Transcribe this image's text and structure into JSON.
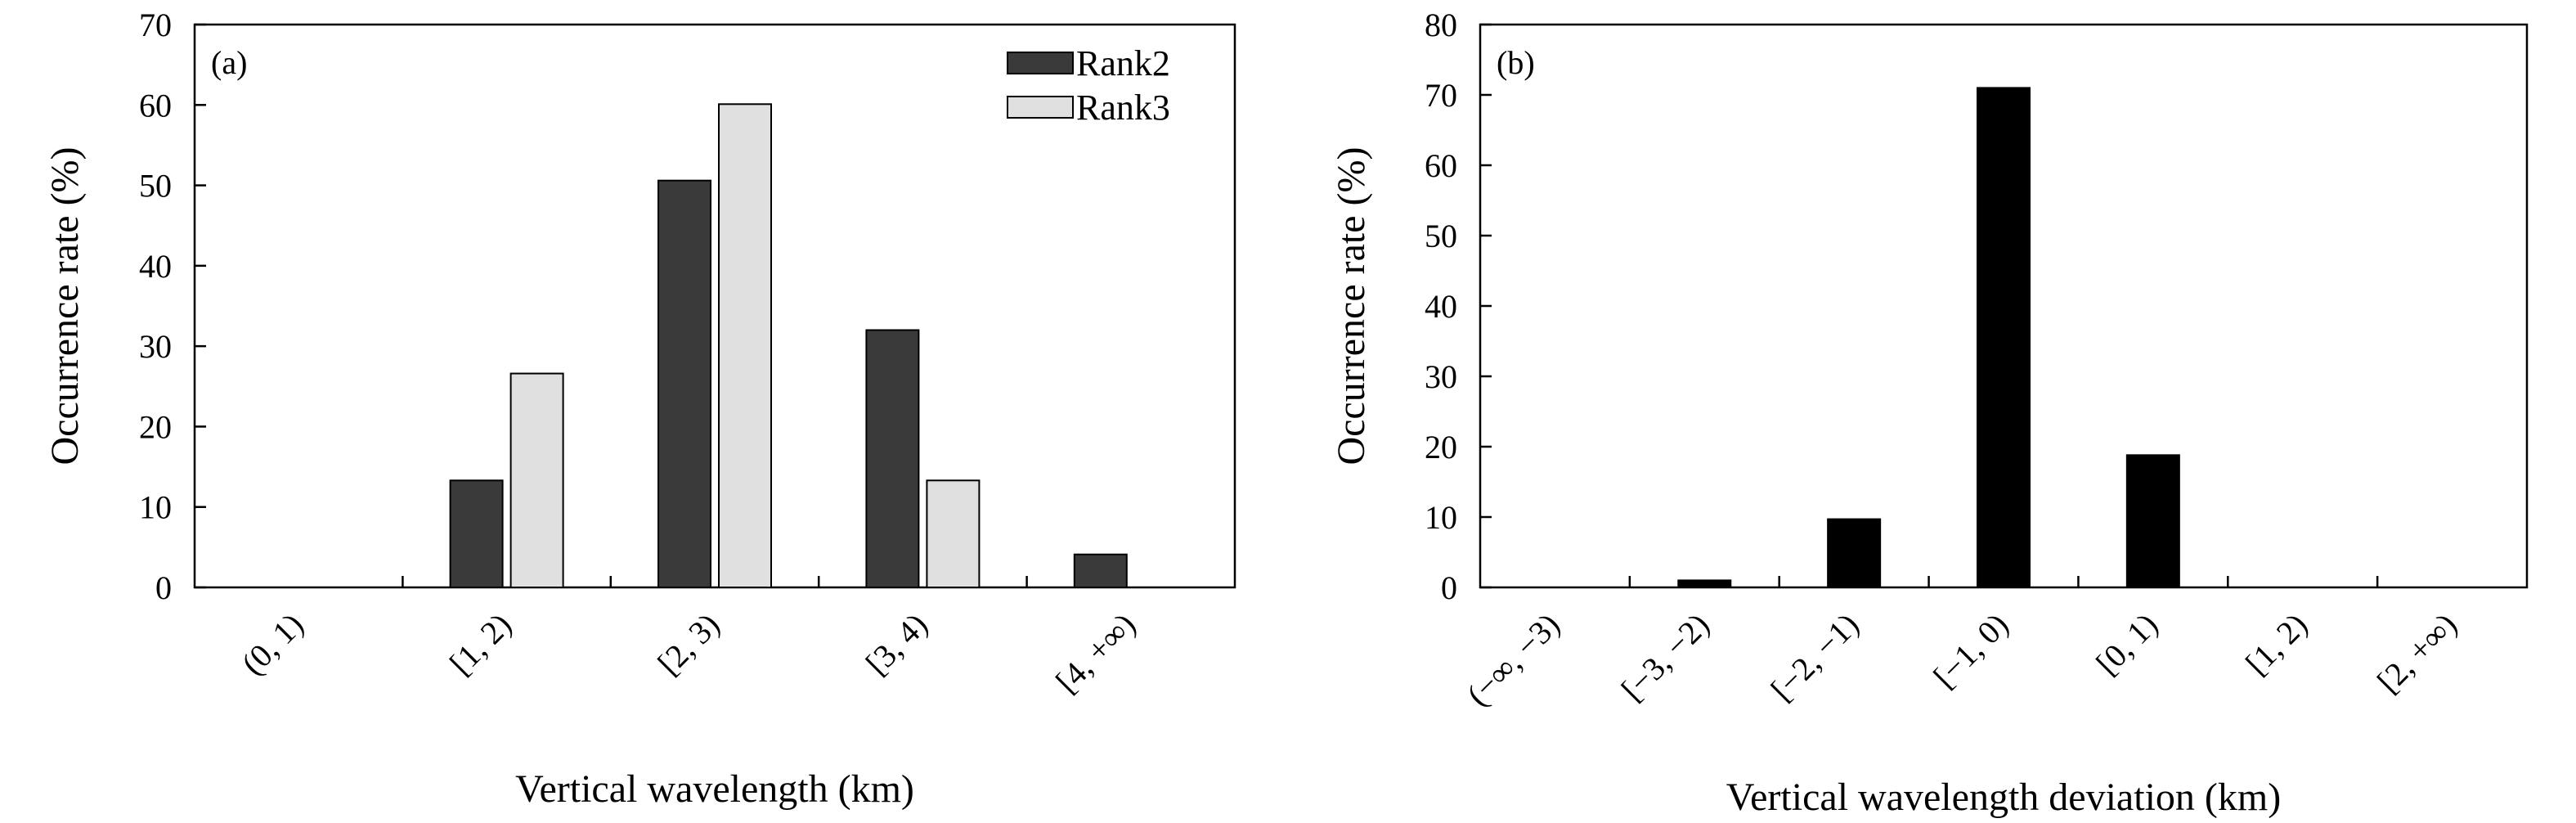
{
  "chart_data": [
    {
      "panel_label": "(a)",
      "type": "bar",
      "xlabel": "Vertical wavelength (km)",
      "ylabel": "Occurrence rate (%)",
      "ylim": [
        0,
        70
      ],
      "yticks": [
        0,
        10,
        20,
        30,
        40,
        50,
        60,
        70
      ],
      "categories": [
        "(0, 1)",
        "[1, 2)",
        "[2, 3)",
        "[3, 4)",
        "[4, +∞)"
      ],
      "legend_position": "top-right",
      "grid": false,
      "series": [
        {
          "name": "Rank2",
          "color": "#3a3a3a",
          "values": [
            0,
            13.3,
            50.6,
            32.0,
            4.1
          ]
        },
        {
          "name": "Rank3",
          "color": "#e0e0e0",
          "values": [
            0,
            26.6,
            60.1,
            13.3,
            0
          ]
        }
      ]
    },
    {
      "panel_label": "(b)",
      "type": "bar",
      "xlabel": "Vertical wavelength deviation (km)",
      "ylabel": "Occurrence rate (%)",
      "ylim": [
        0,
        80
      ],
      "yticks": [
        0,
        10,
        20,
        30,
        40,
        50,
        60,
        70,
        80
      ],
      "categories": [
        "(−∞, −3)",
        "[−3, −2)",
        "[−2, −1)",
        "[−1, 0)",
        "[0, 1)",
        "[1, 2)",
        "[2, +∞)"
      ],
      "grid": false,
      "series": [
        {
          "color": "#000000",
          "values": [
            0,
            1.0,
            9.7,
            71.0,
            18.8,
            0,
            0
          ]
        }
      ]
    }
  ]
}
